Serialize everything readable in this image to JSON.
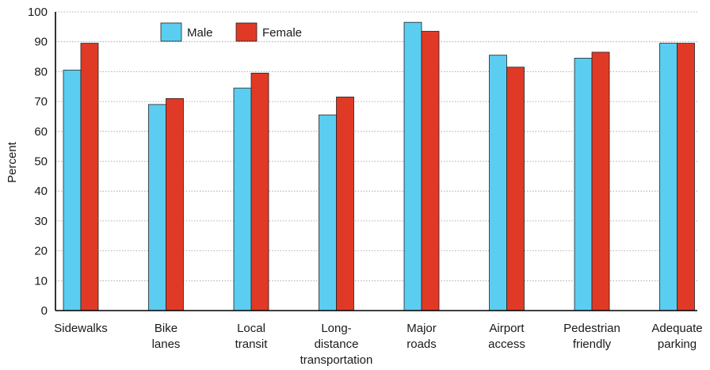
{
  "chart_data": {
    "type": "bar",
    "ylabel": "Percent",
    "ylim": [
      0,
      100
    ],
    "yticks": [
      "0",
      "10",
      "20",
      "30",
      "40",
      "50",
      "60",
      "70",
      "80",
      "90",
      "100"
    ],
    "grid": "horizontal dotted",
    "legend_position": "top-left",
    "categories": [
      [
        "Sidewalks"
      ],
      [
        "Bike",
        "lanes"
      ],
      [
        "Local",
        "transit"
      ],
      [
        "Long-",
        "distance",
        "transportation"
      ],
      [
        "Major",
        "roads"
      ],
      [
        "Airport",
        "access"
      ],
      [
        "Pedestrian",
        "friendly"
      ],
      [
        "Adequate",
        "parking"
      ]
    ],
    "series": [
      {
        "name": "Male",
        "color": "#5bcdf0",
        "values": [
          80.5,
          69,
          74.5,
          65.5,
          96.5,
          85.5,
          84.5,
          89.5
        ]
      },
      {
        "name": "Female",
        "color": "#e03a26",
        "values": [
          89.5,
          71,
          79.5,
          71.5,
          93.5,
          81.5,
          86.5,
          89.5
        ]
      }
    ]
  }
}
